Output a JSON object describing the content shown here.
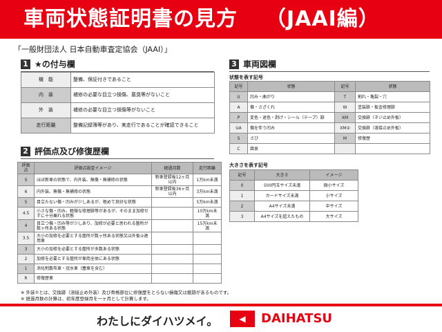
{
  "header": {
    "title": "車両状態証明書の見方",
    "subtitle": "（JAAI編）"
  },
  "org": "「一般財団法人 日本自動車査定協会（JAAI）」",
  "sec1": {
    "num": "1",
    "title": "★の付与欄",
    "rows": [
      {
        "k": "機　能",
        "v": "整備、保証付きであること"
      },
      {
        "k": "内　装",
        "v": "補修の必要な目立つ損傷、悪臭等がないこと"
      },
      {
        "k": "外　装",
        "v": "補修の必要な目立つ損傷等がないこと"
      },
      {
        "k": "走行距離",
        "v": "整備記録簿等があり、実走行であることが確認できること"
      }
    ]
  },
  "sec2": {
    "num": "2",
    "title": "評価点及び修復歴欄",
    "headers": [
      "評価点",
      "評価点設定イメージ",
      "経過月数",
      "走行距離"
    ],
    "rows": [
      [
        "S",
        "ほぼ新車の状態で、内外装、無傷・無補修の状態",
        "新車登録後12ヶ月以内",
        "1万km未満"
      ],
      [
        "6",
        "内外装、無傷・無補修の状態",
        "新車登録後36ヶ月以内",
        "3万km未満"
      ],
      [
        "5",
        "目立たない傷・凹みが少しあるが、極めて良好な状態",
        "",
        "5万km未満"
      ],
      [
        "4.5",
        "小さな傷・凹み、軽微な修理跡等があるが、そのまま加修せずに十分乗れる状態",
        "",
        "10万km未満"
      ],
      [
        "4",
        "目立つ傷・凹み等が少しあり、加修が必要と思われる箇所が数ヶ所ある状態",
        "",
        "15万km未満"
      ],
      [
        "3.5",
        "大小の加修を必要とする箇所が数ヶ所ある状態又は外板②適用車",
        "",
        ""
      ],
      [
        "3",
        "大小の加修を必要とする箇所が多数ある状態",
        "",
        ""
      ],
      [
        "2",
        "加修を必要とする箇所が車両全体にある状態",
        "",
        ""
      ],
      [
        "1",
        "消化剤散布車・冠水車（塵車を含む）",
        "",
        ""
      ],
      [
        "R",
        "修復歴車",
        "",
        ""
      ]
    ]
  },
  "sec3": {
    "num": "3",
    "title": "車両図欄",
    "state": {
      "title": "状態を表す記号",
      "headers": [
        "記号",
        "状態",
        "記号",
        "状態"
      ],
      "rows": [
        [
          "U",
          "凹み・曲がり",
          "T",
          "割れ・亀裂・穴"
        ],
        [
          "A",
          "傷・さざくれ",
          "W",
          "塗装跡・板金修理跡"
        ],
        [
          "P",
          "変色・退色・剥げ・シール（テープ）跡",
          "XM",
          "交換跡（ネジ止め外板）"
        ],
        [
          "UA",
          "傷を伴う凹み",
          "XM②",
          "交換跡（溶接止め外板）"
        ],
        [
          "S",
          "さび",
          "M",
          "修復歴"
        ],
        [
          "C",
          "腐食",
          "",
          ""
        ]
      ]
    },
    "size": {
      "title": "大きさを表す記号",
      "headers": [
        "記号",
        "大きさ",
        "イメージ"
      ],
      "rows": [
        [
          "0",
          "500円玉サイズ未満",
          "微小サイズ"
        ],
        [
          "1",
          "カードサイズ未満",
          "小サイズ"
        ],
        [
          "2",
          "A4サイズ未満",
          "中サイズ"
        ],
        [
          "3",
          "A4サイズを超えたもの",
          "大サイズ"
        ]
      ]
    }
  },
  "notes": [
    "※ 外装②とは、交換跡（溶接止め外装）及び骨格部位に修復歴をとらない損傷又は痕跡があるものです。",
    "※ 経過月数の計算は、初年度登録月を一ヶ月として計算します。"
  ],
  "footer": {
    "slogan": "わたしにダイハツメイ。",
    "brand": "DAIHATSU"
  },
  "colors": {
    "brand_red": "#e60012"
  }
}
